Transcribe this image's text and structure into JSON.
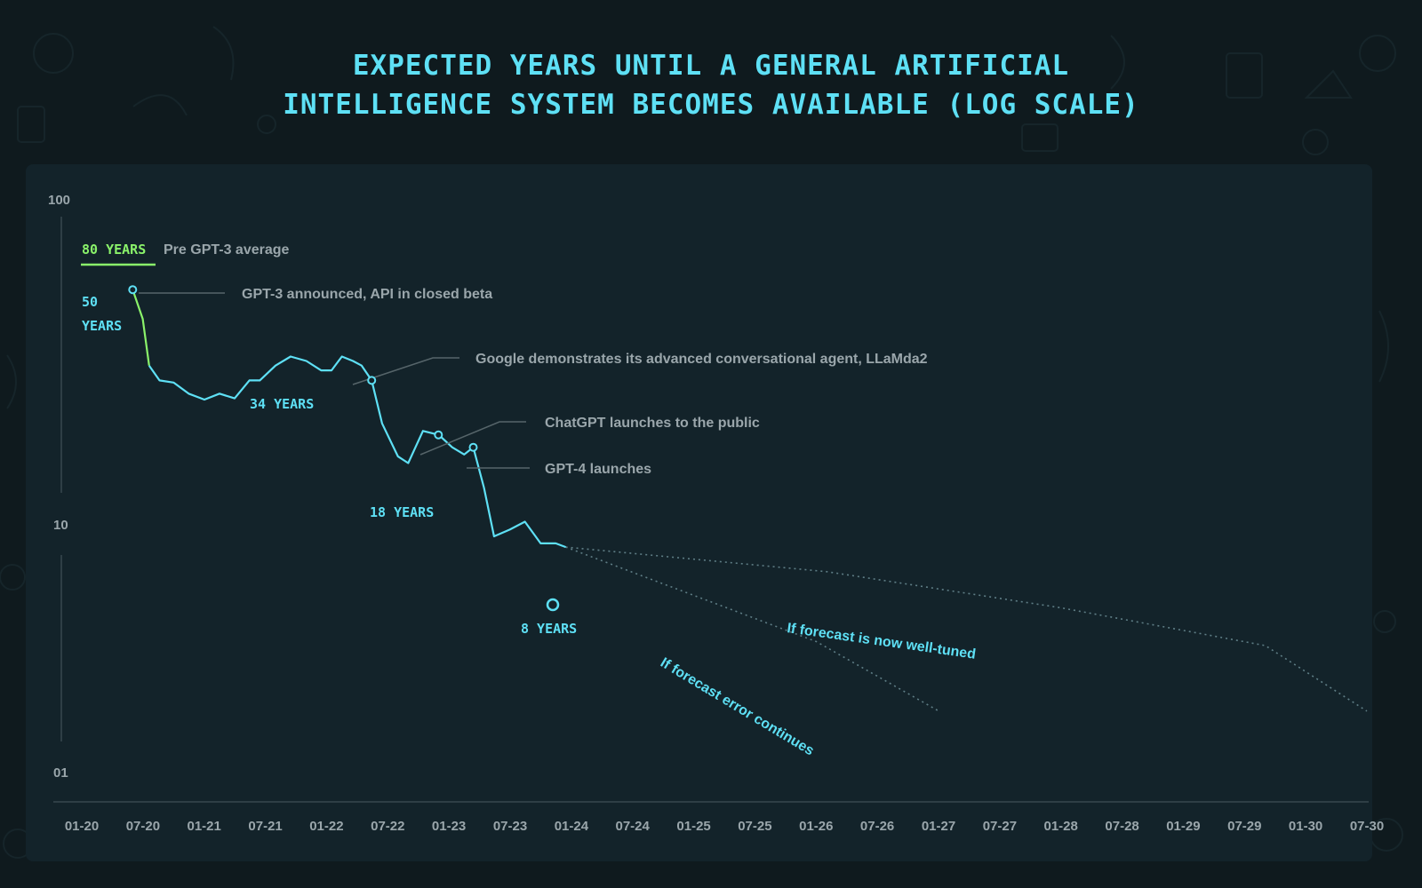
{
  "chart_data": {
    "type": "line",
    "title_lines": [
      "EXPECTED YEARS UNTIL A GENERAL ARTIFICIAL",
      "INTELLIGENCE SYSTEM BECOMES AVAILABLE (LOG SCALE)"
    ],
    "y_scale": "log",
    "ylim": [
      1,
      100
    ],
    "y_ticks": [
      {
        "value": 100,
        "label": "100"
      },
      {
        "value": 10,
        "label": "10"
      },
      {
        "value": 1,
        "label": "01"
      }
    ],
    "x_ticks": [
      "01-20",
      "07-20",
      "01-21",
      "07-21",
      "01-22",
      "07-22",
      "01-23",
      "07-23",
      "01-24",
      "07-24",
      "01-25",
      "07-25",
      "01-26",
      "07-26",
      "01-27",
      "07-27",
      "01-28",
      "07-28",
      "01-29",
      "07-29",
      "01-30",
      "07-30"
    ],
    "xlim": [
      "2020-01-01",
      "2030-07-01"
    ],
    "series": [
      {
        "color": "#5ee0f5",
        "pre_segment_color": "#8af26a",
        "points": [
          [
            "2020-06-01",
            50.0
          ],
          [
            "2020-07-01",
            40.0
          ],
          [
            "2020-07-20",
            28.0
          ],
          [
            "2020-08-20",
            25.0
          ],
          [
            "2020-10-01",
            24.6
          ],
          [
            "2020-11-15",
            22.6
          ],
          [
            "2021-01-01",
            21.6
          ],
          [
            "2021-02-15",
            22.6
          ],
          [
            "2021-04-01",
            21.8
          ],
          [
            "2021-05-15",
            25.0
          ],
          [
            "2021-06-15",
            25.0
          ],
          [
            "2021-08-01",
            28.0
          ],
          [
            "2021-09-15",
            30.0
          ],
          [
            "2021-11-01",
            29.0
          ],
          [
            "2021-12-15",
            27.0
          ],
          [
            "2022-01-15",
            27.0
          ],
          [
            "2022-02-15",
            30.0
          ],
          [
            "2022-03-20",
            29.0
          ],
          [
            "2022-04-15",
            28.0
          ],
          [
            "2022-05-15",
            25.0
          ],
          [
            "2022-06-15",
            18.0
          ],
          [
            "2022-08-01",
            14.0
          ],
          [
            "2022-09-01",
            13.3
          ],
          [
            "2022-10-15",
            17.0
          ],
          [
            "2022-12-01",
            16.5
          ],
          [
            "2023-01-10",
            15.0
          ],
          [
            "2023-02-15",
            14.2
          ],
          [
            "2023-03-14",
            15.0
          ],
          [
            "2023-04-15",
            11.0
          ],
          [
            "2023-05-15",
            7.6
          ],
          [
            "2023-07-01",
            8.0
          ],
          [
            "2023-08-15",
            8.5
          ],
          [
            "2023-10-01",
            7.2
          ],
          [
            "2023-11-15",
            7.2
          ],
          [
            "2023-12-15",
            7.0
          ]
        ]
      },
      {
        "name": "If forecast is now well-tuned",
        "style": "dotted",
        "points": [
          [
            "2023-12-15",
            7.0
          ],
          [
            "2026-02-01",
            5.8
          ],
          [
            "2028-01-01",
            4.4
          ],
          [
            "2029-09-01",
            3.3
          ],
          [
            "2030-07-01",
            2.0
          ]
        ]
      },
      {
        "name": "If forecast error continues",
        "style": "dotted",
        "points": [
          [
            "2023-12-15",
            7.0
          ],
          [
            "2026-01-01",
            3.4
          ],
          [
            "2027-01-01",
            2.0
          ]
        ]
      }
    ],
    "markers": [
      {
        "date": "2020-06-01",
        "value": 50.0,
        "label": "GPT-3 announced, API in closed beta"
      },
      {
        "date": "2022-05-15",
        "value": 25.0,
        "label": "Google demonstrates its advanced conversational agent, LLaMda2"
      },
      {
        "date": "2022-11-30",
        "value": 16.5,
        "label": "ChatGPT launches to the public"
      },
      {
        "date": "2023-03-14",
        "value": 15.0,
        "label": "GPT-4 launches"
      }
    ],
    "value_labels": [
      {
        "text": "50",
        "text2": "YEARS"
      },
      {
        "text": "34 YEARS"
      },
      {
        "text": "18 YEARS"
      },
      {
        "text": "8 YEARS"
      }
    ],
    "legend": {
      "value": "80 YEARS",
      "label": "Pre GPT-3 average",
      "color": "#8af26a"
    },
    "colors": {
      "accent": "#5ee0f5",
      "green": "#8af26a",
      "muted": "#9aa6ab",
      "panel": "#13232a",
      "background": "#0f1a1e"
    }
  }
}
